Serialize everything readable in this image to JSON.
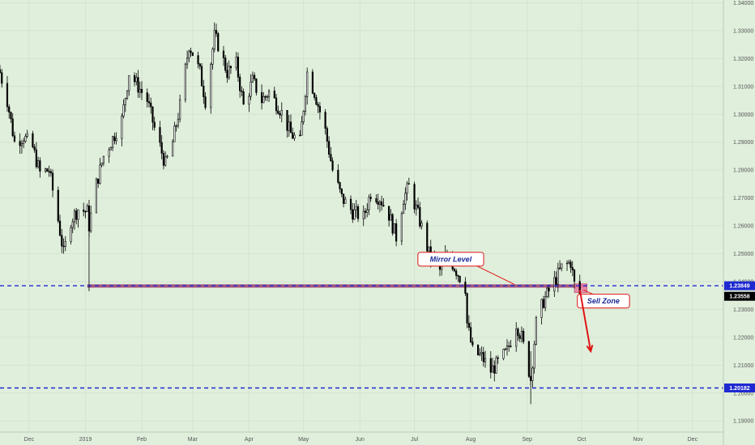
{
  "chart_data": {
    "type": "candlestick",
    "instrument_hint": "daily candles",
    "ylim": [
      1.186,
      1.341
    ],
    "xlim": [
      "2018-11-15",
      "2019-12-18"
    ],
    "y_ticks": [
      "1.34000",
      "1.33000",
      "1.32000",
      "1.31000",
      "1.30000",
      "1.29000",
      "1.28000",
      "1.27000",
      "1.26000",
      "1.25000",
      "1.24000",
      "1.23000",
      "1.22000",
      "1.21000",
      "1.20000",
      "1.19000"
    ],
    "x_ticks": [
      {
        "label": "Dec",
        "date": "2018-12-01"
      },
      {
        "label": "2019",
        "date": "2019-01-01"
      },
      {
        "label": "Feb",
        "date": "2019-02-01"
      },
      {
        "label": "Mar",
        "date": "2019-03-01"
      },
      {
        "label": "Apr",
        "date": "2019-04-01"
      },
      {
        "label": "May",
        "date": "2019-05-01"
      },
      {
        "label": "Jun",
        "date": "2019-06-01"
      },
      {
        "label": "Jul",
        "date": "2019-07-01"
      },
      {
        "label": "Aug",
        "date": "2019-08-01"
      },
      {
        "label": "Sep",
        "date": "2019-09-01"
      },
      {
        "label": "Oct",
        "date": "2019-10-01"
      },
      {
        "label": "Nov",
        "date": "2019-11-01"
      },
      {
        "label": "Dec",
        "date": "2019-12-01"
      }
    ],
    "price_path": [
      [
        "2018-11-15",
        1.315
      ],
      [
        "2018-11-19",
        1.305
      ],
      [
        "2018-11-23",
        1.29
      ],
      [
        "2018-11-28",
        1.292
      ],
      [
        "2018-12-03",
        1.288
      ],
      [
        "2018-12-07",
        1.279
      ],
      [
        "2018-12-12",
        1.28
      ],
      [
        "2018-12-17",
        1.262
      ],
      [
        "2018-12-20",
        1.25
      ],
      [
        "2018-12-24",
        1.262
      ],
      [
        "2018-12-28",
        1.266
      ],
      [
        "2019-01-02",
        1.265
      ],
      [
        "2019-01-03",
        1.26
      ],
      [
        "2019-01-07",
        1.275
      ],
      [
        "2019-01-11",
        1.285
      ],
      [
        "2019-01-15",
        1.29
      ],
      [
        "2019-01-21",
        1.298
      ],
      [
        "2019-01-25",
        1.315
      ],
      [
        "2019-01-30",
        1.31
      ],
      [
        "2019-02-04",
        1.305
      ],
      [
        "2019-02-08",
        1.295
      ],
      [
        "2019-02-14",
        1.282
      ],
      [
        "2019-02-18",
        1.29
      ],
      [
        "2019-02-22",
        1.303
      ],
      [
        "2019-02-27",
        1.325
      ],
      [
        "2019-03-01",
        1.322
      ],
      [
        "2019-03-05",
        1.315
      ],
      [
        "2019-03-08",
        1.305
      ],
      [
        "2019-03-13",
        1.328
      ],
      [
        "2019-03-15",
        1.325
      ],
      [
        "2019-03-20",
        1.315
      ],
      [
        "2019-03-25",
        1.318
      ],
      [
        "2019-03-29",
        1.303
      ],
      [
        "2019-04-03",
        1.312
      ],
      [
        "2019-04-08",
        1.305
      ],
      [
        "2019-04-12",
        1.308
      ],
      [
        "2019-04-18",
        1.302
      ],
      [
        "2019-04-24",
        1.293
      ],
      [
        "2019-04-29",
        1.29
      ],
      [
        "2019-05-03",
        1.315
      ],
      [
        "2019-05-07",
        1.308
      ],
      [
        "2019-05-13",
        1.294
      ],
      [
        "2019-05-17",
        1.28
      ],
      [
        "2019-05-22",
        1.27
      ],
      [
        "2019-05-28",
        1.265
      ],
      [
        "2019-06-03",
        1.263
      ],
      [
        "2019-06-07",
        1.272
      ],
      [
        "2019-06-12",
        1.27
      ],
      [
        "2019-06-17",
        1.264
      ],
      [
        "2019-06-21",
        1.256
      ],
      [
        "2019-06-25",
        1.27
      ],
      [
        "2019-06-28",
        1.274
      ],
      [
        "2019-07-03",
        1.264
      ],
      [
        "2019-07-09",
        1.25
      ],
      [
        "2019-07-15",
        1.244
      ],
      [
        "2019-07-19",
        1.25
      ],
      [
        "2019-07-24",
        1.244
      ],
      [
        "2019-07-29",
        1.238
      ],
      [
        "2019-07-30",
        1.225
      ],
      [
        "2019-08-02",
        1.215
      ],
      [
        "2019-08-07",
        1.213
      ],
      [
        "2019-08-12",
        1.208
      ],
      [
        "2019-08-15",
        1.21
      ],
      [
        "2019-08-21",
        1.215
      ],
      [
        "2019-08-26",
        1.225
      ],
      [
        "2019-08-29",
        1.22
      ],
      [
        "2019-09-03",
        1.205
      ],
      [
        "2019-09-06",
        1.225
      ],
      [
        "2019-09-10",
        1.233
      ],
      [
        "2019-09-16",
        1.24
      ],
      [
        "2019-09-20",
        1.245
      ],
      [
        "2019-09-25",
        1.247
      ],
      [
        "2019-09-27",
        1.239
      ],
      [
        "2019-09-30",
        1.2356
      ]
    ],
    "levels": [
      {
        "label": "1.23849",
        "value": 1.23849,
        "color": "#1e2ad0",
        "style": "dashed"
      },
      {
        "label": "1.20182",
        "value": 1.20182,
        "color": "#1e2ad0",
        "style": "dashed"
      }
    ],
    "current_price": {
      "label": "1.23558",
      "value": 1.23558
    },
    "mirror_zone": {
      "from_date": "2019-01-02",
      "to_date": "2019-10-04",
      "low": 1.2378,
      "high": 1.239,
      "color": "#9a3d6e"
    },
    "sell_zone": {
      "from_date": "2019-09-27",
      "to_date": "2019-10-04",
      "low": 1.236,
      "high": 1.2392,
      "color": "#e87aa0"
    },
    "arrow": {
      "from_date": "2019-09-30",
      "from_value": 1.237,
      "to_date": "2019-10-06",
      "to_value": 1.215,
      "color": "#e01515"
    },
    "annotations": [
      {
        "id": "mirror-level",
        "text": "Mirror Level",
        "date": "2019-07-21",
        "value": 1.248,
        "pointer_date": "2019-08-25",
        "pointer_value": 1.239
      },
      {
        "id": "sell-zone",
        "text": "Sell Zone",
        "date": "2019-10-13",
        "value": 1.233,
        "pointer_date": "2019-10-02",
        "pointer_value": 1.237
      }
    ],
    "colors": {
      "background": "#e0efdc",
      "candle_up": "#ffffff",
      "candle_down": "#000000",
      "level_line": "#1e2ad0",
      "current_price_box": "#000000",
      "annotation_border": "#e01515",
      "annotation_text": "#1a2a9a"
    }
  }
}
